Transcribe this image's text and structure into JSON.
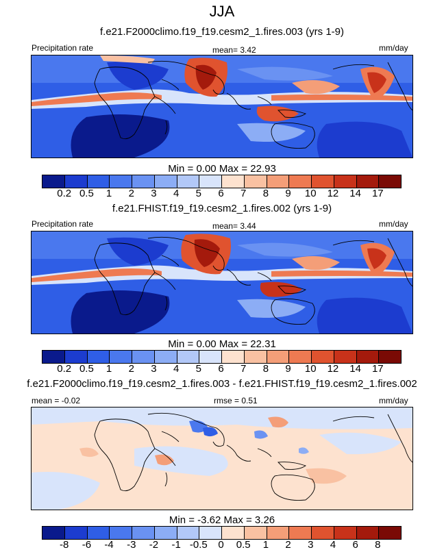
{
  "title": "JJA",
  "panels": [
    {
      "subtitle": "f.e21.F2000climo.f19_f19.cesm2_1.fires.003 (yrs 1-9)",
      "left_label": "Precipitation rate",
      "center_label": "mean=   3.42",
      "right_label": "mm/day",
      "stats": "Min =    0.00 Max =  22.93",
      "colorbar": {
        "colors": [
          "#0a1a8c",
          "#1c3ccf",
          "#2f5ee6",
          "#4a78ee",
          "#6a92f2",
          "#8cadf5",
          "#b2c8f8",
          "#d8e4fb",
          "#fde2cf",
          "#f9c1a2",
          "#f49e78",
          "#ee7a52",
          "#e0532f",
          "#c8321a",
          "#a41a0c",
          "#7a0a05"
        ],
        "ticks": [
          "0.2",
          "0.5",
          "1",
          "2",
          "3",
          "4",
          "5",
          "6",
          "7",
          "8",
          "9",
          "10",
          "12",
          "14",
          "17"
        ]
      }
    },
    {
      "subtitle": "f.e21.FHIST.f19_f19.cesm2_1.fires.002 (yrs 1-9)",
      "left_label": "Precipitation rate",
      "center_label": "mean=   3.44",
      "right_label": "mm/day",
      "stats": "Min =    0.00 Max =  22.31",
      "colorbar": {
        "colors": [
          "#0a1a8c",
          "#1c3ccf",
          "#2f5ee6",
          "#4a78ee",
          "#6a92f2",
          "#8cadf5",
          "#b2c8f8",
          "#d8e4fb",
          "#fde2cf",
          "#f9c1a2",
          "#f49e78",
          "#ee7a52",
          "#e0532f",
          "#c8321a",
          "#a41a0c",
          "#7a0a05"
        ],
        "ticks": [
          "0.2",
          "0.5",
          "1",
          "2",
          "3",
          "4",
          "5",
          "6",
          "7",
          "8",
          "9",
          "10",
          "12",
          "14",
          "17"
        ]
      }
    },
    {
      "subtitle": "f.e21.F2000climo.f19_f19.cesm2_1.fires.003 - f.e21.FHIST.f19_f19.cesm2_1.fires.002",
      "left_label": "mean =  -0.02",
      "center_label": "rmse =   0.51",
      "right_label": "mm/day",
      "stats": "Min =  -3.62 Max =   3.26",
      "colorbar": {
        "colors": [
          "#0a1a8c",
          "#1c3ccf",
          "#2f5ee6",
          "#4a78ee",
          "#6a92f2",
          "#8cadf5",
          "#b2c8f8",
          "#d8e4fb",
          "#fde2cf",
          "#f9c1a2",
          "#f49e78",
          "#ee7a52",
          "#e0532f",
          "#c8321a",
          "#a41a0c",
          "#7a0a05"
        ],
        "ticks": [
          "-8",
          "-6",
          "-4",
          "-3",
          "-2",
          "-1",
          "-0.5",
          "0",
          "0.5",
          "1",
          "2",
          "3",
          "4",
          "6",
          "8"
        ]
      }
    }
  ]
}
